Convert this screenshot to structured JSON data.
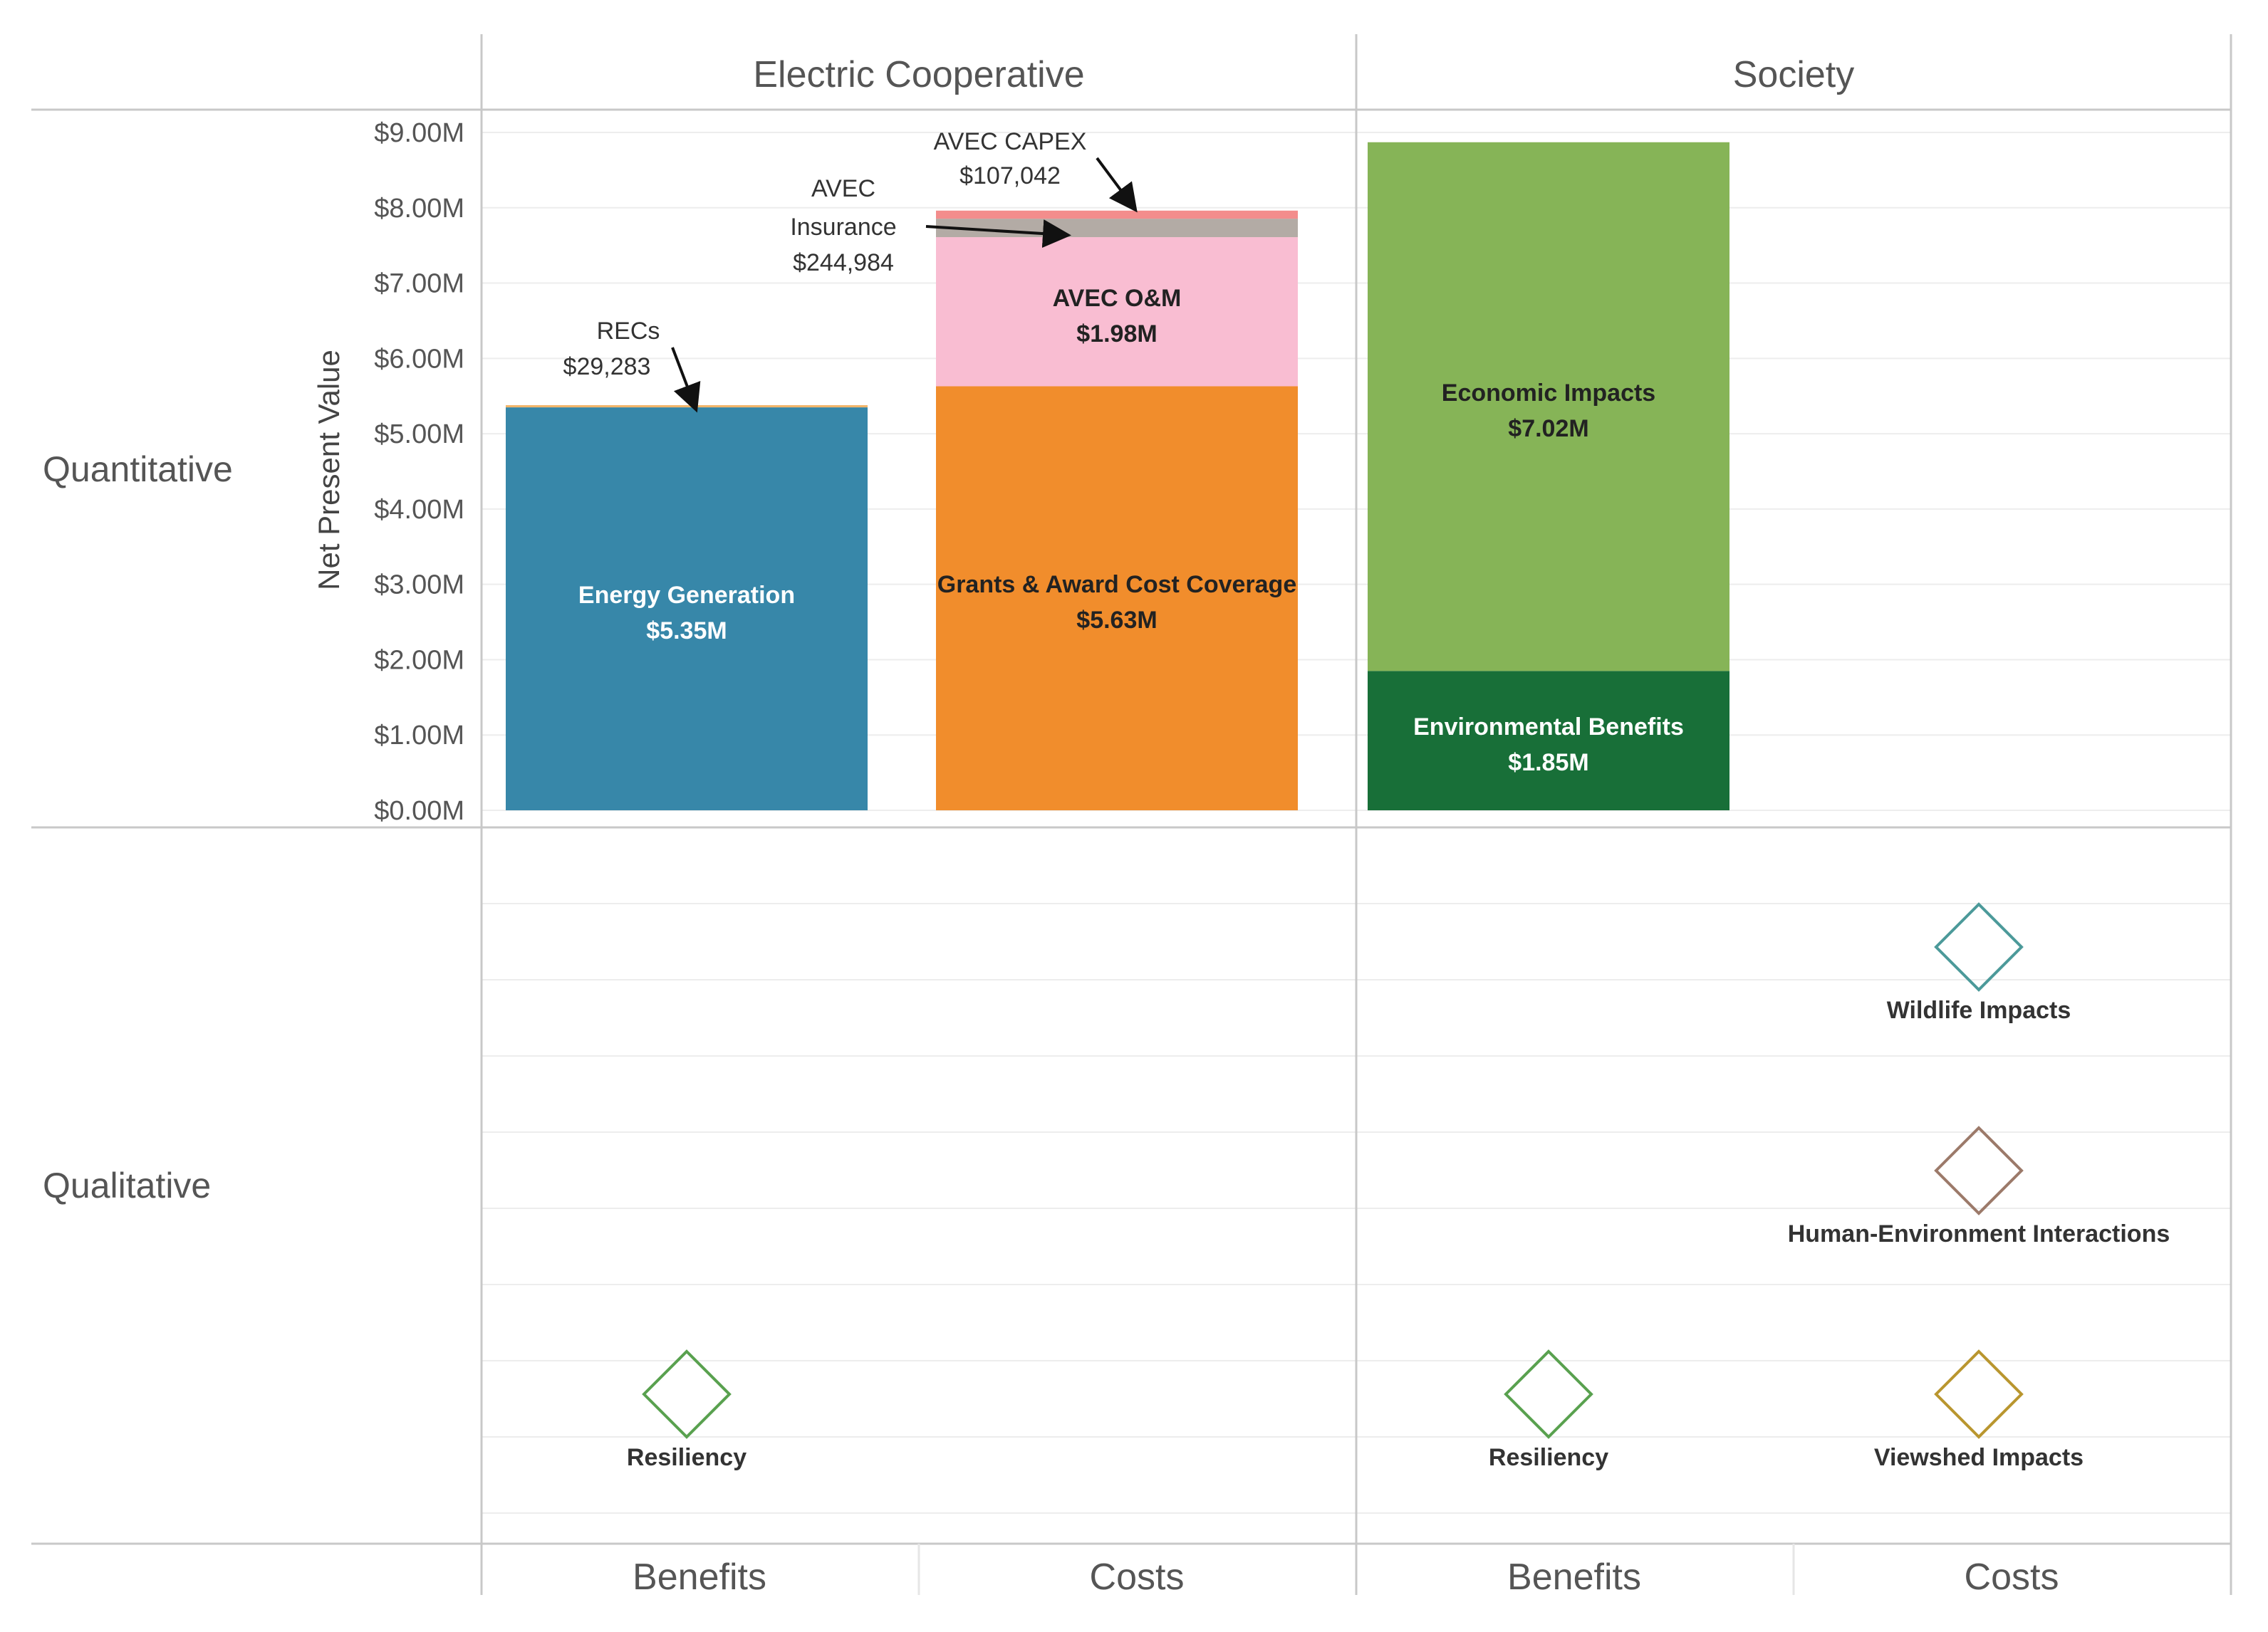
{
  "chart_data": {
    "type": "bar",
    "stacked": true,
    "ylabel": "Net Present Value",
    "ylim": [
      0,
      9000000
    ],
    "y_ticks": [
      "$0.00M",
      "$1.00M",
      "$2.00M",
      "$3.00M",
      "$4.00M",
      "$5.00M",
      "$6.00M",
      "$7.00M",
      "$8.00M",
      "$9.00M"
    ],
    "column_groups": [
      "Electric Cooperative",
      "Society"
    ],
    "row_groups": [
      "Quantitative",
      "Qualitative"
    ],
    "subcategories": [
      "Benefits",
      "Costs",
      "Benefits",
      "Costs"
    ],
    "series": [
      {
        "name": "Energy Generation",
        "group": "Electric Cooperative",
        "category": "Benefits",
        "value": 5350000,
        "label": "$5.35M",
        "color": "#3787A9",
        "text_color": "#ffffff"
      },
      {
        "name": "RECs",
        "group": "Electric Cooperative",
        "category": "Benefits",
        "value": 29283,
        "label": "$29,283",
        "color": "#F2B56A"
      },
      {
        "name": "Grants & Award Cost Coverage",
        "group": "Electric Cooperative",
        "category": "Costs",
        "value": 5630000,
        "label": "$5.63M",
        "color": "#F18D2C",
        "text_color": "#222222"
      },
      {
        "name": "AVEC O&M",
        "group": "Electric Cooperative",
        "category": "Costs",
        "value": 1980000,
        "label": "$1.98M",
        "color": "#F9BDD2",
        "text_color": "#222222"
      },
      {
        "name": "AVEC Insurance",
        "group": "Electric Cooperative",
        "category": "Costs",
        "value": 244984,
        "label": "$244,984",
        "color": "#B3ABA5"
      },
      {
        "name": "AVEC CAPEX",
        "group": "Electric Cooperative",
        "category": "Costs",
        "value": 107042,
        "label": "$107,042",
        "color": "#F38D8C"
      },
      {
        "name": "Environmental Benefits",
        "group": "Society",
        "category": "Benefits",
        "value": 1850000,
        "label": "$1.85M",
        "color": "#186F38",
        "text_color": "#ffffff"
      },
      {
        "name": "Economic Impacts",
        "group": "Society",
        "category": "Benefits",
        "value": 7020000,
        "label": "$7.02M",
        "color": "#86B457",
        "text_color": "#222222"
      }
    ],
    "annotations": [
      {
        "lines": [
          "AVEC CAPEX",
          "$107,042"
        ]
      },
      {
        "lines": [
          "AVEC",
          "Insurance",
          "$244,984"
        ]
      },
      {
        "lines": [
          "RECs",
          "$29,283"
        ]
      }
    ],
    "qualitative": [
      {
        "name": "Resiliency",
        "group": "Electric Cooperative",
        "category": "Benefits",
        "level": 1,
        "color": "#59A14F"
      },
      {
        "name": "Resiliency",
        "group": "Society",
        "category": "Benefits",
        "level": 1,
        "color": "#59A14F"
      },
      {
        "name": "Viewshed Impacts",
        "group": "Society",
        "category": "Costs",
        "level": 1,
        "color": "#B9962F"
      },
      {
        "name": "Human-Environment Interactions",
        "group": "Society",
        "category": "Costs",
        "level": 2,
        "color": "#9C7A6A"
      },
      {
        "name": "Wildlife Impacts",
        "group": "Society",
        "category": "Costs",
        "level": 3,
        "color": "#4C9A9A"
      }
    ]
  }
}
